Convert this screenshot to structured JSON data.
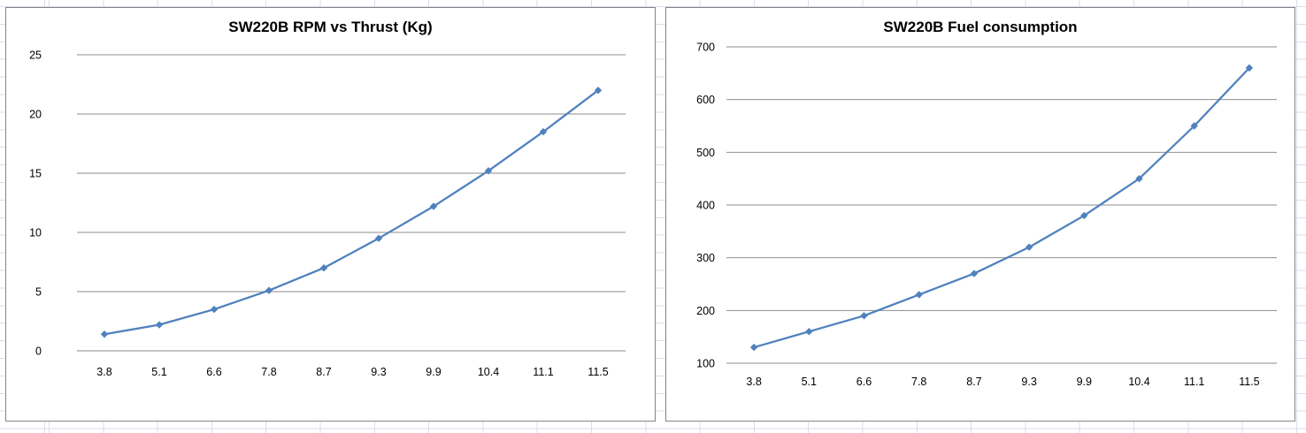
{
  "window": {
    "kind": "spreadsheet-worksheet-with-embedded-charts"
  },
  "colors": {
    "series_line": "#4F81BD",
    "marker_fill": "#4F81BD",
    "plot_gridline": "#8E8E8E",
    "chart_border": "#848484",
    "sheet_cell_gridline": "#D8DEEA",
    "title_text": "#000000",
    "tick_label_text": "#000000",
    "chart_background": "#FFFFFF"
  },
  "chart_data": [
    {
      "type": "line",
      "title": "SW220B RPM vs Thrust (Kg)",
      "categories": [
        "3.8",
        "5.1",
        "6.6",
        "7.8",
        "8.7",
        "9.3",
        "9.9",
        "10.4",
        "11.1",
        "11.5"
      ],
      "values": [
        1.4,
        2.2,
        3.5,
        5.1,
        7.0,
        9.5,
        12.2,
        15.2,
        18.5,
        22.0
      ],
      "xlabel": "",
      "ylabel": "",
      "ylim": [
        0,
        25
      ],
      "yticks": [
        0,
        5,
        10,
        15,
        20,
        25
      ],
      "grid": true,
      "legend": false,
      "marker": "diamond",
      "x_axis_type": "category"
    },
    {
      "type": "line",
      "title": "SW220B Fuel consumption",
      "categories": [
        "3.8",
        "5.1",
        "6.6",
        "7.8",
        "8.7",
        "9.3",
        "9.9",
        "10.4",
        "11.1",
        "11.5"
      ],
      "values": [
        130,
        160,
        190,
        230,
        270,
        320,
        380,
        450,
        550,
        660
      ],
      "xlabel": "",
      "ylabel": "",
      "ylim": [
        100,
        700
      ],
      "yticks": [
        100,
        200,
        300,
        400,
        500,
        600,
        700
      ],
      "grid": true,
      "legend": false,
      "marker": "diamond",
      "x_axis_type": "category"
    }
  ]
}
